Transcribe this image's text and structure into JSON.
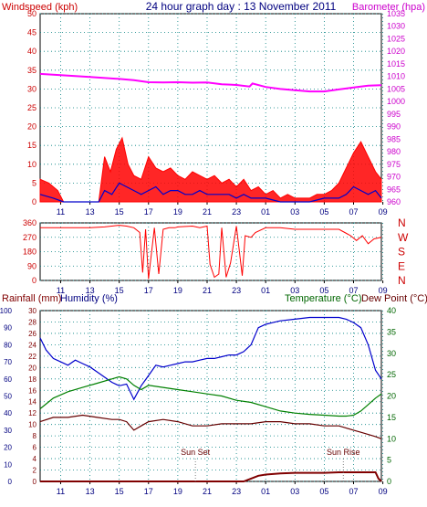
{
  "chart_data": [
    {
      "type": "line",
      "title": "24 hour graph day : 13 November 2011",
      "left_axis_label": "Windspeed (kph)",
      "right_axis_label": "Barometer (hpa)",
      "left_ylim": [
        0,
        50
      ],
      "left_ticks": [
        "0",
        "5",
        "10",
        "15",
        "20",
        "25",
        "30",
        "35",
        "40",
        "45",
        "50"
      ],
      "right_ylim": [
        960,
        1035
      ],
      "right_ticks": [
        "960",
        "965",
        "970",
        "975",
        "980",
        "985",
        "990",
        "995",
        "1000",
        "1005",
        "1010",
        "1015",
        "1020",
        "1025",
        "1030",
        "1035"
      ],
      "x_ticks": [
        "11",
        "13",
        "15",
        "17",
        "19",
        "21",
        "23",
        "01",
        "03",
        "05",
        "07",
        "09"
      ],
      "grid": true,
      "colors": {
        "gust": "#ff0000",
        "average": "#0000cc",
        "speed_fill": "#008000",
        "barometer": "#ff00ff"
      },
      "series": [
        {
          "name": "barometer",
          "axis": "right",
          "x": [
            9.6,
            11,
            13,
            15,
            16,
            17,
            18,
            19,
            20,
            21,
            22,
            23,
            23.9,
            24.1,
            25,
            26,
            27,
            28,
            29,
            30,
            31,
            32,
            32.9
          ],
          "values": [
            1011,
            1010.5,
            1009.8,
            1009,
            1008.5,
            1007.7,
            1007.6,
            1007.7,
            1007.5,
            1007.6,
            1006.9,
            1006.6,
            1006,
            1007.2,
            1005.8,
            1005,
            1004.5,
            1004,
            1004,
            1004.8,
            1005.6,
            1006.3,
            1006.5
          ]
        },
        {
          "name": "gust",
          "axis": "left",
          "x": [
            9.6,
            10.2,
            10.8,
            11.2,
            13.6,
            14,
            14.4,
            14.8,
            15.2,
            15.6,
            16,
            16.5,
            17,
            17.5,
            18,
            18.5,
            19,
            19.5,
            20,
            20.5,
            21,
            21.5,
            22,
            22.5,
            23,
            23.5,
            24,
            24.5,
            25,
            25.5,
            26,
            26.5,
            27,
            27.5,
            28,
            28.5,
            29,
            29.5,
            30,
            30.5,
            31,
            31.5,
            32,
            32.5,
            32.9
          ],
          "values": [
            6,
            5,
            3,
            0,
            0,
            12,
            8,
            14,
            17,
            10,
            7,
            6,
            12,
            9,
            8,
            9,
            7,
            6,
            8,
            7,
            6,
            7,
            5,
            6,
            4,
            6,
            3,
            4,
            2,
            3,
            1,
            2,
            1,
            1,
            1,
            2,
            2,
            3,
            5,
            9,
            13,
            16,
            12,
            8,
            6
          ]
        },
        {
          "name": "average",
          "axis": "left",
          "x": [
            9.6,
            10.5,
            11.2,
            13.6,
            14,
            14.5,
            15,
            15.5,
            16,
            16.5,
            17,
            17.5,
            18,
            18.5,
            19,
            19.5,
            20,
            20.5,
            21,
            21.5,
            22,
            22.5,
            23,
            23.5,
            24,
            25,
            26,
            27,
            28,
            29,
            30,
            30.5,
            31,
            31.5,
            32,
            32.5,
            32.9
          ],
          "values": [
            2,
            1,
            0,
            0,
            3,
            2,
            5,
            4,
            3,
            2,
            3,
            4,
            2,
            3,
            3,
            2,
            2,
            3,
            2,
            2,
            2,
            2,
            1,
            2,
            1,
            1,
            0,
            0,
            0,
            1,
            1,
            2,
            4,
            3,
            2,
            3,
            1
          ]
        }
      ]
    },
    {
      "type": "scatter",
      "left_ylim": [
        0,
        360
      ],
      "left_ticks": [
        "0",
        "90",
        "180",
        "270",
        "360"
      ],
      "right_labels": [
        "N",
        "W",
        "S",
        "E",
        "N"
      ],
      "x_ticks": [
        "11",
        "13",
        "15",
        "17",
        "19",
        "21",
        "23",
        "01",
        "03",
        "05",
        "07",
        "09"
      ],
      "colors": {
        "direction": "#ff0000"
      },
      "series": [
        {
          "name": "direction",
          "x": [
            9.6,
            11,
            13,
            14,
            15,
            15.5,
            16,
            16.4,
            16.6,
            16.8,
            17,
            17.4,
            17.7,
            18,
            18.4,
            18.8,
            19,
            20,
            20.5,
            21,
            21.2,
            21.5,
            21.8,
            22,
            22.3,
            22.6,
            23,
            23.4,
            23.6,
            24,
            24.3,
            25,
            26,
            27,
            28,
            29,
            30,
            30.4,
            30.8,
            31.2,
            31.6,
            32,
            32.4,
            32.9
          ],
          "values": [
            330,
            330,
            330,
            335,
            345,
            340,
            330,
            300,
            50,
            320,
            10,
            330,
            40,
            320,
            330,
            330,
            335,
            340,
            330,
            340,
            100,
            20,
            40,
            330,
            20,
            110,
            340,
            30,
            280,
            270,
            300,
            330,
            330,
            320,
            320,
            320,
            320,
            300,
            280,
            250,
            280,
            230,
            260,
            270
          ]
        }
      ]
    },
    {
      "type": "line",
      "left_axis_label": "Rainfall (mm)",
      "left_axis2_label": "Humidity (%)",
      "right_axis_label": "Temperature (°C)",
      "right_axis2_label": "Dew Point (°C)",
      "humidity_ylim": [
        0,
        100
      ],
      "humidity_ticks": [
        "0",
        "10",
        "20",
        "30",
        "40",
        "50",
        "60",
        "70",
        "80",
        "90",
        "100"
      ],
      "rainfall_ylim": [
        0,
        30
      ],
      "rainfall_ticks": [
        "0",
        "2",
        "4",
        "6",
        "8",
        "10",
        "12",
        "14",
        "16",
        "18",
        "20",
        "22",
        "24",
        "26",
        "28",
        "30"
      ],
      "temperature_ylim": [
        0,
        40
      ],
      "temperature_ticks": [
        "0",
        "5",
        "10",
        "15",
        "20",
        "25",
        "30",
        "35",
        "40"
      ],
      "x_ticks": [
        "11",
        "13",
        "15",
        "17",
        "19",
        "21",
        "23",
        "01",
        "03",
        "05",
        "07",
        "09"
      ],
      "annotations": [
        {
          "text": "Sun Set",
          "x": 20.2
        },
        {
          "text": "Sun Rise",
          "x": 30.3
        }
      ],
      "colors": {
        "humidity": "#0000cc",
        "temperature": "#008000",
        "dew_point": "#660000",
        "rainfall": "#800000"
      },
      "series": [
        {
          "name": "humidity",
          "axis": "humidity",
          "x": [
            9.6,
            10,
            10.5,
            11,
            11.5,
            12,
            12.5,
            13,
            13.5,
            14,
            14.5,
            15,
            15.5,
            16,
            16.5,
            17,
            17.5,
            18,
            18.5,
            19,
            19.5,
            20,
            20.5,
            21,
            21.5,
            22,
            22.5,
            23,
            23.5,
            24,
            24.5,
            25,
            25.5,
            26,
            27,
            28,
            29,
            29.5,
            30,
            30.5,
            31,
            31.5,
            32,
            32.5,
            32.9
          ],
          "values": [
            84,
            77,
            72,
            70,
            68,
            71,
            69,
            67,
            64,
            61,
            58,
            56,
            57,
            48,
            56,
            62,
            68,
            67,
            68,
            69,
            70,
            70,
            71,
            72,
            72,
            73,
            74,
            74,
            76,
            80,
            90,
            92,
            93,
            94,
            95,
            96,
            96,
            96,
            96,
            95,
            93,
            90,
            80,
            65,
            60
          ]
        },
        {
          "name": "temperature",
          "axis": "temperature",
          "x": [
            9.6,
            10.5,
            11.5,
            12.5,
            13.5,
            14.5,
            15,
            15.5,
            16,
            16.5,
            17,
            18,
            19,
            20,
            21,
            22,
            23,
            24,
            25,
            26,
            27,
            28,
            29,
            29.5,
            30,
            30.5,
            31,
            31.5,
            32,
            32.5,
            32.9
          ],
          "values": [
            17,
            19.5,
            21,
            22,
            23,
            24,
            24.5,
            24,
            22.5,
            21.5,
            22.5,
            22,
            21.5,
            21,
            20.5,
            20,
            19,
            18.5,
            17.5,
            16.5,
            16,
            15.7,
            15.5,
            15.4,
            15.3,
            15.3,
            15.5,
            16.5,
            18,
            19.5,
            20.5
          ]
        },
        {
          "name": "dew_point",
          "axis": "temperature",
          "x": [
            9.6,
            10.5,
            11.5,
            12.5,
            13.5,
            14.5,
            15,
            15.5,
            16,
            16.5,
            17,
            18,
            19,
            20,
            21,
            22,
            23,
            24,
            25,
            26,
            27,
            28,
            29,
            30,
            30.5,
            31,
            31.5,
            32,
            32.5,
            32.9
          ],
          "values": [
            14,
            15,
            15,
            15.5,
            15,
            14.5,
            14.5,
            14,
            12,
            13,
            14,
            14.5,
            14,
            13,
            13,
            13.5,
            13.5,
            13.5,
            14,
            14,
            13.5,
            13.5,
            13,
            13,
            12.5,
            12,
            11.5,
            11,
            10.5,
            10
          ]
        },
        {
          "name": "rainfall",
          "axis": "rainfall",
          "x": [
            9.6,
            23.5,
            24,
            24.5,
            25,
            26,
            27,
            28,
            29,
            30,
            31,
            32,
            32.5,
            32.7,
            32.9
          ],
          "values": [
            0,
            0,
            0.5,
            1,
            1.2,
            1.4,
            1.5,
            1.5,
            1.5,
            1.6,
            1.6,
            1.6,
            1.6,
            0.5,
            0
          ]
        }
      ]
    }
  ]
}
